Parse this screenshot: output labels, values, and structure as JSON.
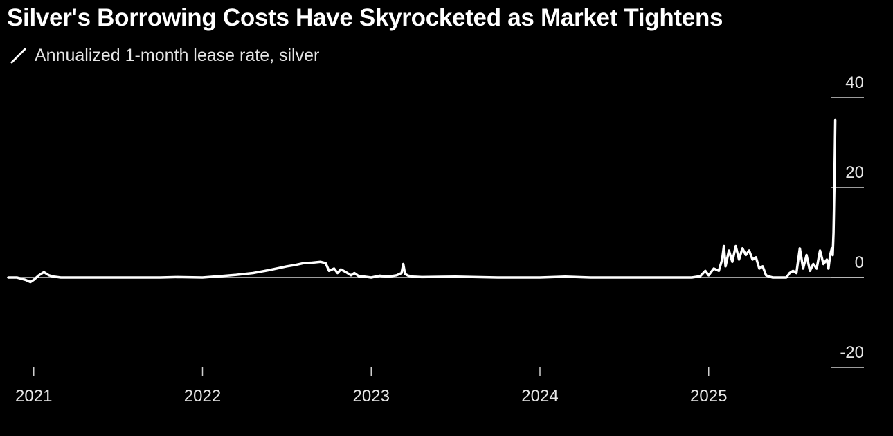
{
  "chart_data": {
    "type": "line",
    "title": "Silver's Borrowing Costs Have Skyrocketed as Market Tightens",
    "legend": [
      {
        "label": "Annualized 1-month lease rate, silver",
        "color": "#ffffff"
      }
    ],
    "xlabel": "",
    "ylabel": "",
    "x_ticks": [
      2021,
      2022,
      2023,
      2024,
      2025
    ],
    "y_ticks": [
      40,
      20,
      0,
      -20
    ],
    "ylim": [
      -20,
      40
    ],
    "xlim": [
      2020.8,
      2025.92
    ],
    "series": [
      {
        "name": "Annualized 1-month lease rate, silver",
        "x": [
          2020.85,
          2020.9,
          2020.95,
          2020.98,
          2021.0,
          2021.03,
          2021.06,
          2021.09,
          2021.12,
          2021.16,
          2021.25,
          2021.5,
          2021.75,
          2021.85,
          2022.0,
          2022.1,
          2022.2,
          2022.3,
          2022.4,
          2022.5,
          2022.55,
          2022.6,
          2022.65,
          2022.7,
          2022.73,
          2022.75,
          2022.78,
          2022.8,
          2022.82,
          2022.85,
          2022.88,
          2022.9,
          2022.93,
          2022.96,
          2023.0,
          2023.05,
          2023.1,
          2023.15,
          2023.18,
          2023.19,
          2023.2,
          2023.22,
          2023.25,
          2023.3,
          2023.5,
          2023.75,
          2024.0,
          2024.15,
          2024.3,
          2024.6,
          2024.9,
          2024.95,
          2024.98,
          2025.0,
          2025.03,
          2025.06,
          2025.08,
          2025.09,
          2025.1,
          2025.12,
          2025.14,
          2025.16,
          2025.18,
          2025.2,
          2025.22,
          2025.24,
          2025.26,
          2025.28,
          2025.3,
          2025.32,
          2025.34,
          2025.36,
          2025.38,
          2025.42,
          2025.46,
          2025.48,
          2025.5,
          2025.52,
          2025.54,
          2025.56,
          2025.58,
          2025.6,
          2025.62,
          2025.64,
          2025.66,
          2025.68,
          2025.7,
          2025.71,
          2025.72,
          2025.73,
          2025.735,
          2025.74,
          2025.745,
          2025.75
        ],
        "y": [
          0.0,
          0.0,
          -0.5,
          -1.0,
          -0.5,
          0.5,
          1.2,
          0.5,
          0.2,
          0.0,
          0.0,
          0.0,
          0.0,
          0.1,
          0.0,
          0.3,
          0.6,
          1.0,
          1.7,
          2.5,
          2.8,
          3.2,
          3.3,
          3.5,
          3.2,
          1.5,
          2.0,
          1.0,
          1.8,
          1.2,
          0.5,
          1.0,
          0.2,
          0.2,
          0.0,
          0.4,
          0.2,
          0.5,
          1.0,
          3.0,
          0.8,
          0.4,
          0.2,
          0.1,
          0.2,
          0.0,
          0.0,
          0.2,
          0.0,
          0.0,
          0.0,
          0.3,
          1.5,
          0.5,
          2.0,
          1.5,
          4.0,
          7.0,
          2.5,
          6.0,
          3.5,
          7.0,
          4.0,
          6.5,
          5.0,
          6.0,
          4.0,
          4.5,
          2.0,
          2.5,
          0.5,
          0.2,
          0.0,
          0.0,
          0.0,
          1.0,
          1.5,
          1.0,
          6.5,
          2.0,
          5.0,
          1.5,
          3.0,
          2.0,
          6.0,
          3.0,
          4.0,
          2.0,
          5.0,
          6.5,
          5.0,
          10.0,
          20.0,
          35.0
        ]
      }
    ]
  }
}
